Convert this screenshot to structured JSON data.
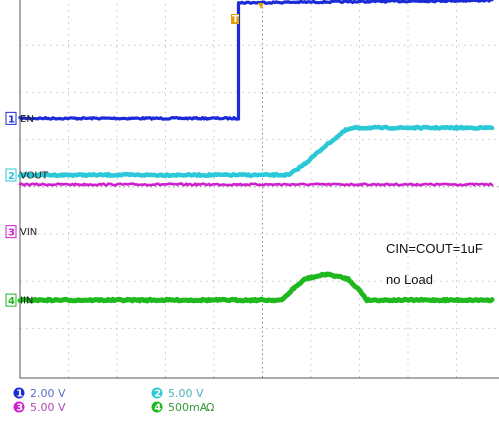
{
  "chart_data": {
    "type": "line",
    "title": "",
    "xlabel": "",
    "ylabel": "",
    "grid": true,
    "time_divisions": 10,
    "vertical_divisions": 8,
    "trigger_marker": "T",
    "series": [
      {
        "channel": "1",
        "name": "EN",
        "color": "#1b2bd8",
        "scale": "2.00 V",
        "ref_level_div": 2.55,
        "points": [
          [
            0,
            0
          ],
          [
            4.63,
            0
          ],
          [
            4.63,
            2.45
          ],
          [
            4.7,
            2.45
          ],
          [
            10,
            2.5
          ]
        ]
      },
      {
        "channel": "3",
        "name": "VIN",
        "color": "#cf1fcf",
        "scale": "5.00 V",
        "ref_level_div": 4.95,
        "points": [
          [
            0,
            1.0
          ],
          [
            10,
            1.0
          ]
        ]
      },
      {
        "channel": "2",
        "name": "VOUT",
        "color": "#2bc8d8",
        "scale": "5.00 V",
        "ref_level_div": 3.75,
        "points": [
          [
            0,
            0
          ],
          [
            5.7,
            0
          ],
          [
            6.05,
            0.25
          ],
          [
            6.45,
            0.6
          ],
          [
            6.9,
            0.95
          ],
          [
            7.1,
            1.0
          ],
          [
            10,
            1.0
          ]
        ]
      },
      {
        "channel": "4",
        "name": "IIN",
        "color": "#1fb81f",
        "scale": "500mA",
        "ref_level_div": 6.4,
        "points": [
          [
            0,
            0
          ],
          [
            5.55,
            0
          ],
          [
            5.8,
            0.25
          ],
          [
            6.05,
            0.45
          ],
          [
            6.5,
            0.55
          ],
          [
            6.95,
            0.45
          ],
          [
            7.2,
            0.2
          ],
          [
            7.35,
            0
          ],
          [
            10,
            0
          ]
        ]
      }
    ],
    "annotations": [
      "CIN=COUT=1uF",
      "no Load"
    ]
  },
  "legend": [
    {
      "num": "1",
      "scale": "2.00 V",
      "color": "#1b2bd8",
      "text_color": "#5a6fc8"
    },
    {
      "num": "2",
      "scale": "5.00 V",
      "color": "#2bc8d8",
      "text_color": "#4fb0c0"
    },
    {
      "num": "3",
      "scale": "5.00 V",
      "color": "#cf1fcf",
      "text_color": "#b04ab0"
    },
    {
      "num": "4",
      "scale": "500mA",
      "color": "#1fb81f",
      "text_color": "#3a9a3a",
      "extra": "Ω"
    }
  ]
}
